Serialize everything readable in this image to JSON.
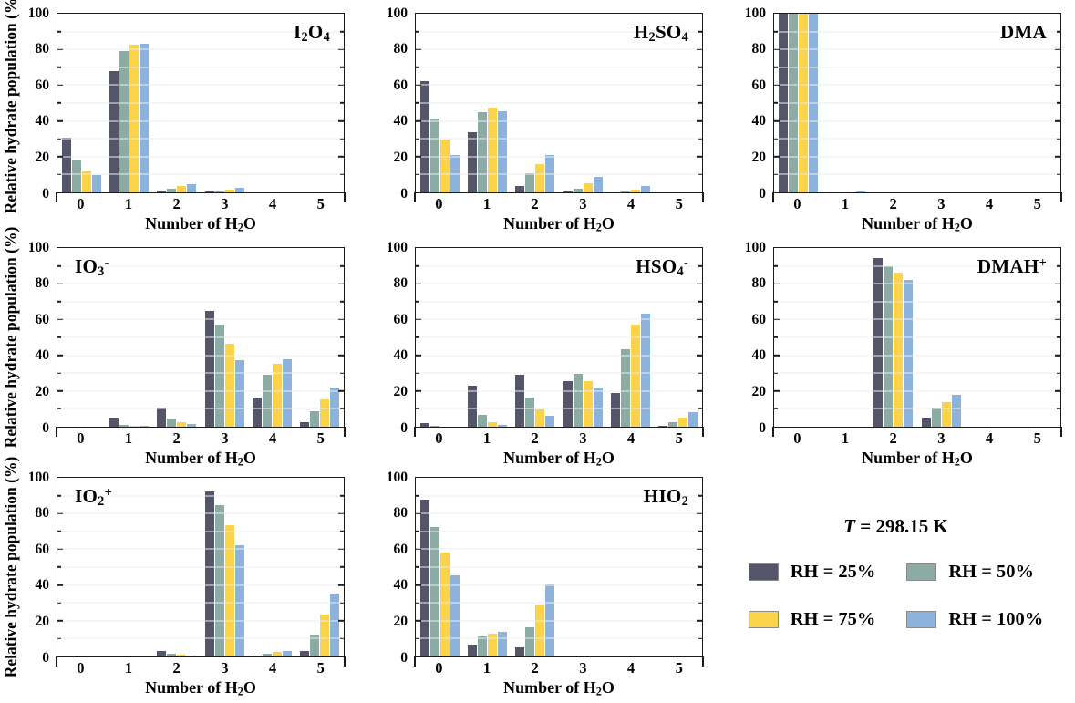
{
  "colors": {
    "rh25": "#555569",
    "rh50": "#8BACA5",
    "rh75": "#FBD34B",
    "rh100": "#8DB3DD",
    "axis": "#1b1b1b",
    "grid": "#ededed"
  },
  "axes": {
    "y_label": "Relative hydrate population (%)",
    "x_label": "Number of H_2O",
    "y_ticks": [
      0,
      20,
      40,
      60,
      80,
      100
    ],
    "y_minor_step": 10,
    "ylim": [
      0,
      100
    ],
    "x_categories": [
      "0",
      "1",
      "2",
      "3",
      "4",
      "5"
    ]
  },
  "legend": {
    "title_T": "T",
    "title_rest": " = 298.15 K",
    "items": [
      {
        "label": "RH = 25%",
        "color_key": "rh25"
      },
      {
        "label": "RH = 50%",
        "color_key": "rh50"
      },
      {
        "label": "RH = 75%",
        "color_key": "rh75"
      },
      {
        "label": "RH = 100%",
        "color_key": "rh100"
      }
    ]
  },
  "chart_data": [
    {
      "type": "bar",
      "id": "i2o4",
      "title": "I_2O_4",
      "title_position": "right",
      "show_y_label": true,
      "categories": [
        0,
        1,
        2,
        3,
        4,
        5
      ],
      "ylim": [
        0,
        100
      ],
      "series": [
        {
          "name": "RH = 25%",
          "color_key": "rh25",
          "values": [
            30.5,
            68,
            1,
            0.5,
            0,
            0
          ]
        },
        {
          "name": "RH = 50%",
          "color_key": "rh50",
          "values": [
            18,
            79,
            2,
            0.5,
            0,
            0
          ]
        },
        {
          "name": "RH = 75%",
          "color_key": "rh75",
          "values": [
            12,
            82.5,
            3.5,
            1.5,
            0,
            0
          ]
        },
        {
          "name": "RH = 100%",
          "color_key": "rh100",
          "values": [
            9.5,
            83,
            4.5,
            2.5,
            0,
            0
          ]
        }
      ]
    },
    {
      "type": "bar",
      "id": "h2so4",
      "title": "H_2SO_4",
      "title_position": "right",
      "show_y_label": false,
      "categories": [
        0,
        1,
        2,
        3,
        4,
        5
      ],
      "ylim": [
        0,
        100
      ],
      "series": [
        {
          "name": "RH = 25%",
          "color_key": "rh25",
          "values": [
            62,
            33.5,
            3.5,
            0.3,
            0,
            0
          ]
        },
        {
          "name": "RH = 50%",
          "color_key": "rh50",
          "values": [
            41.5,
            45,
            10.5,
            2,
            0.5,
            0
          ]
        },
        {
          "name": "RH = 75%",
          "color_key": "rh75",
          "values": [
            29.5,
            47.5,
            16,
            5,
            1.5,
            0
          ]
        },
        {
          "name": "RH = 100%",
          "color_key": "rh100",
          "values": [
            21,
            45.5,
            21,
            8.5,
            3.5,
            0
          ]
        }
      ]
    },
    {
      "type": "bar",
      "id": "dma",
      "title": "DMA",
      "title_position": "right",
      "show_y_label": false,
      "categories": [
        0,
        1,
        2,
        3,
        4,
        5
      ],
      "ylim": [
        0,
        100
      ],
      "series": [
        {
          "name": "RH = 25%",
          "color_key": "rh25",
          "values": [
            100,
            0,
            0,
            0,
            0,
            0
          ]
        },
        {
          "name": "RH = 50%",
          "color_key": "rh50",
          "values": [
            100,
            0,
            0,
            0,
            0,
            0
          ]
        },
        {
          "name": "RH = 75%",
          "color_key": "rh75",
          "values": [
            100,
            0,
            0,
            0,
            0,
            0
          ]
        },
        {
          "name": "RH = 100%",
          "color_key": "rh100",
          "values": [
            100,
            0.5,
            0,
            0,
            0,
            0
          ]
        }
      ]
    },
    {
      "type": "bar",
      "id": "io3",
      "title": "IO_3^-",
      "title_position": "left",
      "show_y_label": true,
      "categories": [
        0,
        1,
        2,
        3,
        4,
        5
      ],
      "ylim": [
        0,
        100
      ],
      "series": [
        {
          "name": "RH = 25%",
          "color_key": "rh25",
          "values": [
            0,
            5,
            10.5,
            65,
            16.5,
            2.5
          ]
        },
        {
          "name": "RH = 50%",
          "color_key": "rh50",
          "values": [
            0,
            1,
            4.5,
            57,
            29,
            8.5
          ]
        },
        {
          "name": "RH = 75%",
          "color_key": "rh75",
          "values": [
            0,
            0.3,
            2.5,
            46.5,
            35,
            15.5
          ]
        },
        {
          "name": "RH = 100%",
          "color_key": "rh100",
          "values": [
            0,
            0.3,
            1.5,
            37.5,
            38,
            22
          ]
        }
      ]
    },
    {
      "type": "bar",
      "id": "hso4",
      "title": "HSO_4^-",
      "title_position": "right",
      "show_y_label": false,
      "categories": [
        0,
        1,
        2,
        3,
        4,
        5
      ],
      "ylim": [
        0,
        100
      ],
      "series": [
        {
          "name": "RH = 25%",
          "color_key": "rh25",
          "values": [
            2,
            23,
            29,
            25.5,
            19,
            0.5
          ]
        },
        {
          "name": "RH = 50%",
          "color_key": "rh50",
          "values": [
            0.3,
            6.5,
            16.5,
            29.5,
            43.5,
            2.5
          ]
        },
        {
          "name": "RH = 75%",
          "color_key": "rh75",
          "values": [
            0,
            2.5,
            9.5,
            25.5,
            57,
            5
          ]
        },
        {
          "name": "RH = 100%",
          "color_key": "rh100",
          "values": [
            0,
            1,
            6,
            21.5,
            63.5,
            8
          ]
        }
      ]
    },
    {
      "type": "bar",
      "id": "dmah",
      "title": "DMAH^+",
      "title_position": "right",
      "show_y_label": false,
      "categories": [
        0,
        1,
        2,
        3,
        4,
        5
      ],
      "ylim": [
        0,
        100
      ],
      "series": [
        {
          "name": "RH = 25%",
          "color_key": "rh25",
          "values": [
            0,
            0,
            94.5,
            5,
            0,
            0
          ]
        },
        {
          "name": "RH = 50%",
          "color_key": "rh50",
          "values": [
            0,
            0,
            90,
            10,
            0,
            0
          ]
        },
        {
          "name": "RH = 75%",
          "color_key": "rh75",
          "values": [
            0,
            0,
            86,
            14,
            0,
            0
          ]
        },
        {
          "name": "RH = 100%",
          "color_key": "rh100",
          "values": [
            0,
            0,
            82,
            18,
            0,
            0
          ]
        }
      ]
    },
    {
      "type": "bar",
      "id": "io2",
      "title": "IO_2^+",
      "title_position": "left",
      "show_y_label": true,
      "categories": [
        0,
        1,
        2,
        3,
        4,
        5
      ],
      "ylim": [
        0,
        100
      ],
      "series": [
        {
          "name": "RH = 25%",
          "color_key": "rh25",
          "values": [
            0,
            0,
            3,
            92.5,
            0.5,
            3
          ]
        },
        {
          "name": "RH = 50%",
          "color_key": "rh50",
          "values": [
            0,
            0,
            1.5,
            84.5,
            1.5,
            12
          ]
        },
        {
          "name": "RH = 75%",
          "color_key": "rh75",
          "values": [
            0,
            0,
            1,
            73.5,
            2.5,
            23.5
          ]
        },
        {
          "name": "RH = 100%",
          "color_key": "rh100",
          "values": [
            0,
            0,
            0.3,
            62,
            3,
            35
          ]
        }
      ]
    },
    {
      "type": "bar",
      "id": "hio2",
      "title": "HIO_2",
      "title_position": "right",
      "show_y_label": false,
      "categories": [
        0,
        1,
        2,
        3,
        4,
        5
      ],
      "ylim": [
        0,
        100
      ],
      "series": [
        {
          "name": "RH = 25%",
          "color_key": "rh25",
          "values": [
            88,
            6.5,
            5,
            0,
            0,
            0
          ]
        },
        {
          "name": "RH = 50%",
          "color_key": "rh50",
          "values": [
            72.5,
            11,
            16.5,
            0,
            0,
            0
          ]
        },
        {
          "name": "RH = 75%",
          "color_key": "rh75",
          "values": [
            58,
            13,
            29,
            0,
            0,
            0
          ]
        },
        {
          "name": "RH = 100%",
          "color_key": "rh100",
          "values": [
            45.5,
            14,
            40.5,
            0,
            0,
            0
          ]
        }
      ]
    }
  ]
}
